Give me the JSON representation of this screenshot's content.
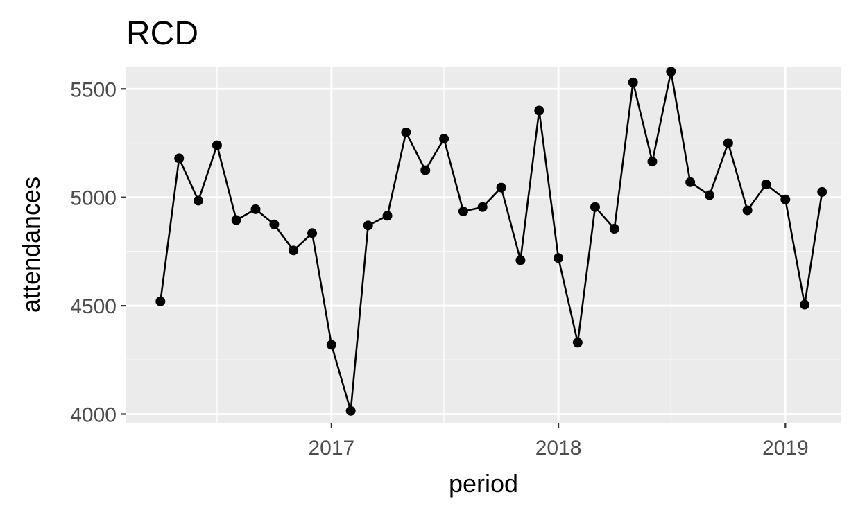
{
  "chart_data": {
    "type": "line",
    "title": "RCD",
    "xlabel": "period",
    "ylabel": "attendances",
    "x_ticks": [
      "2017",
      "2018",
      "2019"
    ],
    "y_ticks": [
      "4000",
      "4500",
      "5000",
      "5500"
    ],
    "ylim": [
      3960,
      5600
    ],
    "xlim": [
      "2016-02-06",
      "2019-04-01"
    ],
    "grid": true,
    "legend": "none",
    "series": [
      {
        "x": [
          "2016-04-01",
          "2016-05-01",
          "2016-06-01",
          "2016-07-01",
          "2016-08-01",
          "2016-09-01",
          "2016-10-01",
          "2016-11-01",
          "2016-12-01",
          "2017-01-01",
          "2017-02-01",
          "2017-03-01",
          "2017-04-01",
          "2017-05-01",
          "2017-06-01",
          "2017-07-01",
          "2017-08-01",
          "2017-09-01",
          "2017-10-01",
          "2017-11-01",
          "2017-12-01",
          "2018-01-01",
          "2018-02-01",
          "2018-03-01",
          "2018-04-01",
          "2018-05-01",
          "2018-06-01",
          "2018-07-01",
          "2018-08-01",
          "2018-09-01",
          "2018-10-01",
          "2018-11-01",
          "2018-12-01",
          "2019-01-01",
          "2019-02-01",
          "2019-03-01"
        ],
        "values": [
          4520,
          5180,
          4985,
          5240,
          4895,
          4945,
          4875,
          4755,
          4835,
          4320,
          4015,
          4870,
          4915,
          5300,
          5125,
          5270,
          4935,
          4955,
          5045,
          4710,
          5400,
          4720,
          4330,
          4955,
          4855,
          5530,
          5165,
          5580,
          5070,
          5010,
          5250,
          4940,
          5060,
          4990,
          4505,
          5025
        ]
      }
    ],
    "colors": {
      "panel": "#ebebeb",
      "grid": "#ffffff",
      "line": "#000000",
      "tick_text": "#4d4d4d"
    }
  }
}
